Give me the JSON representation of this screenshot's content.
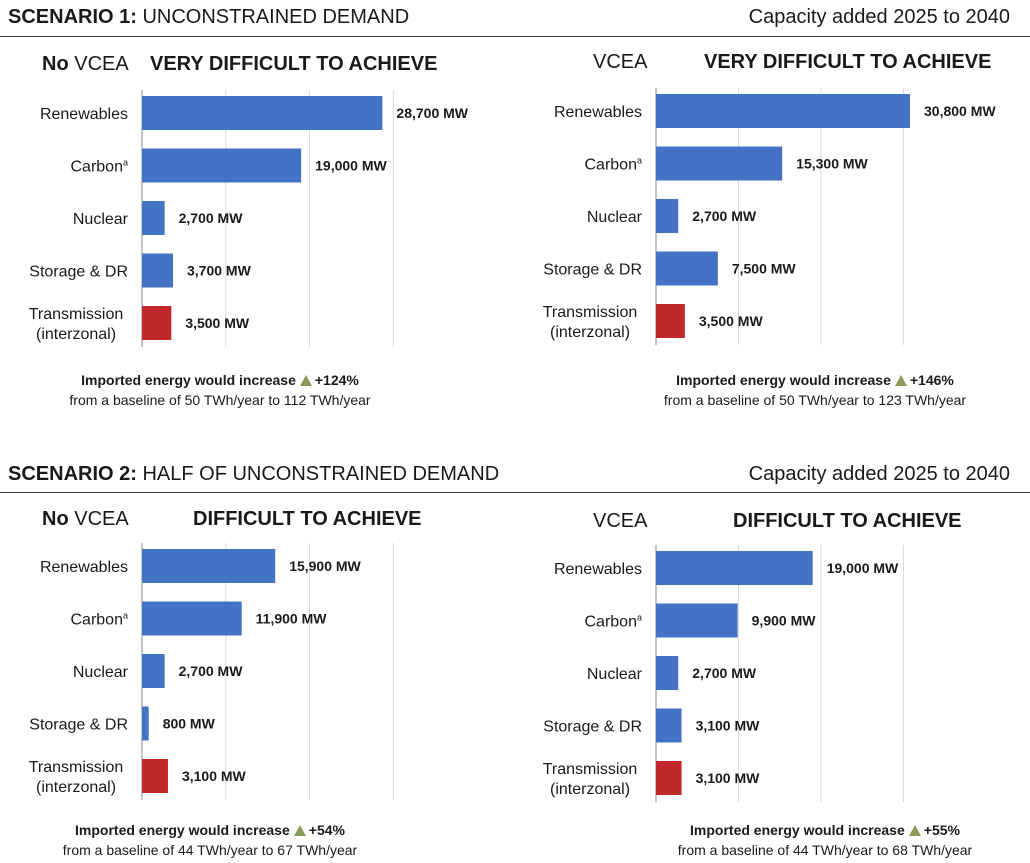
{
  "colors": {
    "bar": "#4472c4",
    "transmission": "#c0282c",
    "arrow": "#8a9a5b",
    "grid": "#d9d9d9",
    "axis": "#888888"
  },
  "scenarios": [
    {
      "label_bold": "SCENARIO 1:",
      "label_rest": " UNCONSTRAINED DEMAND",
      "capacity_note": "Capacity added 2025 to 2040"
    },
    {
      "label_bold": "SCENARIO 2:",
      "label_rest": " HALF OF UNCONSTRAINED DEMAND",
      "capacity_note": "Capacity added 2025 to 2040"
    }
  ],
  "panels": [
    {
      "title_bold": "No",
      "title_rest": " VCEA",
      "verdict": "VERY DIFFICULT TO ACHIEVE",
      "import_line1": "Imported energy would increase",
      "import_pct": "+124%",
      "import_line2": "from a baseline of 50 TWh/year to 112 TWh/year"
    },
    {
      "title_bold": "",
      "title_rest": "VCEA",
      "verdict": "VERY DIFFICULT TO ACHIEVE",
      "import_line1": "Imported energy would increase",
      "import_pct": "+146%",
      "import_line2": "from a baseline of 50 TWh/year to 123 TWh/year"
    },
    {
      "title_bold": "No",
      "title_rest": " VCEA",
      "verdict": "DIFFICULT TO ACHIEVE",
      "import_line1": "Imported energy would increase",
      "import_pct": "+54%",
      "import_line2": "from a baseline of 44 TWh/year to 67 TWh/year"
    },
    {
      "title_bold": "",
      "title_rest": "VCEA",
      "verdict": "DIFFICULT TO ACHIEVE",
      "import_line1": "Imported energy would increase",
      "import_pct": "+55%",
      "import_line2": "from a baseline of 44 TWh/year to 68 TWh/year"
    }
  ],
  "chart_data": [
    {
      "type": "bar",
      "orientation": "horizontal",
      "title": "No VCEA",
      "subtitle": "VERY DIFFICULT TO ACHIEVE",
      "categories": [
        "Renewables",
        "Carbon",
        "Nuclear",
        "Storage & DR",
        "Transmission (interzonal)"
      ],
      "category_lines": [
        [
          "Renewables"
        ],
        [
          "Carbon",
          "a"
        ],
        [
          "Nuclear"
        ],
        [
          "Storage & DR"
        ],
        [
          "Transmission",
          "(interzonal)"
        ]
      ],
      "values": [
        28700,
        19000,
        2700,
        3700,
        3500
      ],
      "value_labels": [
        "28,700 MW",
        "19,000 MW",
        "2,700 MW",
        "3,700 MW",
        "3,500 MW"
      ],
      "xlim": [
        0,
        30800
      ],
      "grid": true
    },
    {
      "type": "bar",
      "orientation": "horizontal",
      "title": "VCEA",
      "subtitle": "VERY DIFFICULT TO ACHIEVE",
      "categories": [
        "Renewables",
        "Carbon",
        "Nuclear",
        "Storage & DR",
        "Transmission (interzonal)"
      ],
      "category_lines": [
        [
          "Renewables"
        ],
        [
          "Carbon",
          "a"
        ],
        [
          "Nuclear"
        ],
        [
          "Storage & DR"
        ],
        [
          "Transmission",
          "(interzonal)"
        ]
      ],
      "values": [
        30800,
        15300,
        2700,
        7500,
        3500
      ],
      "value_labels": [
        "30,800 MW",
        "15,300 MW",
        "2,700 MW",
        "7,500 MW",
        "3,500 MW"
      ],
      "xlim": [
        0,
        30800
      ],
      "grid": true
    },
    {
      "type": "bar",
      "orientation": "horizontal",
      "title": "No VCEA",
      "subtitle": "DIFFICULT TO ACHIEVE",
      "categories": [
        "Renewables",
        "Carbon",
        "Nuclear",
        "Storage & DR",
        "Transmission (interzonal)"
      ],
      "category_lines": [
        [
          "Renewables"
        ],
        [
          "Carbon",
          "a"
        ],
        [
          "Nuclear"
        ],
        [
          "Storage & DR"
        ],
        [
          "Transmission",
          "(interzonal)"
        ]
      ],
      "values": [
        15900,
        11900,
        2700,
        800,
        3100
      ],
      "value_labels": [
        "15,900 MW",
        "11,900 MW",
        "2,700 MW",
        "800 MW",
        "3,100 MW"
      ],
      "xlim": [
        0,
        30800
      ],
      "grid": true
    },
    {
      "type": "bar",
      "orientation": "horizontal",
      "title": "VCEA",
      "subtitle": "DIFFICULT TO ACHIEVE",
      "categories": [
        "Renewables",
        "Carbon",
        "Nuclear",
        "Storage & DR",
        "Transmission (interzonal)"
      ],
      "category_lines": [
        [
          "Renewables"
        ],
        [
          "Carbon",
          "a"
        ],
        [
          "Nuclear"
        ],
        [
          "Storage & DR"
        ],
        [
          "Transmission",
          "(interzonal)"
        ]
      ],
      "values": [
        19000,
        9900,
        2700,
        3100,
        3100
      ],
      "value_labels": [
        "19,000 MW",
        "9,900 MW",
        "2,700 MW",
        "3,100 MW",
        "3,100 MW"
      ],
      "xlim": [
        0,
        30800
      ],
      "grid": true
    }
  ]
}
